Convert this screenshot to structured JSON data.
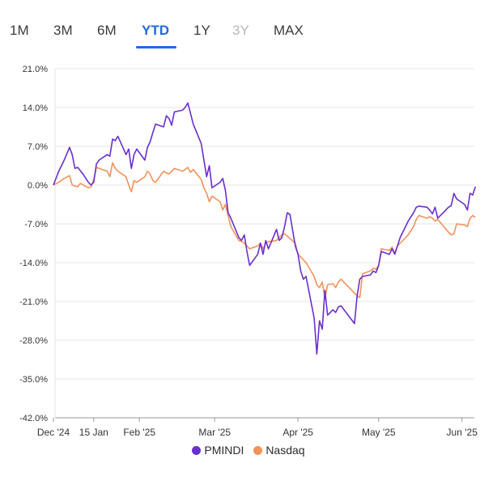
{
  "tabs": [
    {
      "label": "1M",
      "state": "normal"
    },
    {
      "label": "3M",
      "state": "normal"
    },
    {
      "label": "6M",
      "state": "normal"
    },
    {
      "label": "YTD",
      "state": "active"
    },
    {
      "label": "1Y",
      "state": "normal"
    },
    {
      "label": "3Y",
      "state": "disabled"
    },
    {
      "label": "MAX",
      "state": "normal"
    }
  ],
  "colors": {
    "accent": "#1e6be0",
    "pmindi": "#6a2fd0",
    "nasdaq": "#f4925a"
  },
  "chart_data": {
    "type": "line",
    "grid": "horizontal",
    "legend_position": "bottom-center",
    "ylim": [
      -42,
      21
    ],
    "y_ticks": [
      "21.0%",
      "14.0%",
      "7.0%",
      "0.0%",
      "-7.0%",
      "-14.0%",
      "-21.0%",
      "-28.0%",
      "-35.0%",
      "-42.0%"
    ],
    "y_tick_values": [
      21,
      14,
      7,
      0,
      -7,
      -14,
      -21,
      -28,
      -35,
      -42
    ],
    "x_range": [
      "2024-12-31",
      "2025-06-05"
    ],
    "x_ticks": [
      {
        "label": "Dec '24",
        "date": "2024-12-31"
      },
      {
        "label": "15 Jan",
        "date": "2025-01-15"
      },
      {
        "label": "Feb '25",
        "date": "2025-02-01"
      },
      {
        "label": "Mar '25",
        "date": "2025-03-01"
      },
      {
        "label": "Apr '25",
        "date": "2025-04-01"
      },
      {
        "label": "May '25",
        "date": "2025-05-01"
      },
      {
        "label": "Jun '25",
        "date": "2025-06-01"
      }
    ],
    "series": [
      {
        "name": "PMINDI",
        "points": [
          [
            "2024-12-31",
            0.0
          ],
          [
            "2025-01-02",
            2.5
          ],
          [
            "2025-01-04",
            4.5
          ],
          [
            "2025-01-06",
            6.8
          ],
          [
            "2025-01-07",
            5.5
          ],
          [
            "2025-01-08",
            3.0
          ],
          [
            "2025-01-09",
            3.2
          ],
          [
            "2025-01-11",
            2.0
          ],
          [
            "2025-01-13",
            0.5
          ],
          [
            "2025-01-14",
            0.0
          ],
          [
            "2025-01-15",
            0.5
          ],
          [
            "2025-01-16",
            3.8
          ],
          [
            "2025-01-17",
            4.5
          ],
          [
            "2025-01-20",
            5.5
          ],
          [
            "2025-01-21",
            5.2
          ],
          [
            "2025-01-22",
            8.3
          ],
          [
            "2025-01-23",
            8.0
          ],
          [
            "2025-01-24",
            8.8
          ],
          [
            "2025-01-27",
            5.5
          ],
          [
            "2025-01-28",
            6.5
          ],
          [
            "2025-01-29",
            3.0
          ],
          [
            "2025-01-30",
            5.5
          ],
          [
            "2025-01-31",
            6.5
          ],
          [
            "2025-02-03",
            4.5
          ],
          [
            "2025-02-04",
            6.8
          ],
          [
            "2025-02-05",
            7.8
          ],
          [
            "2025-02-06",
            9.5
          ],
          [
            "2025-02-07",
            11.0
          ],
          [
            "2025-02-10",
            10.5
          ],
          [
            "2025-02-11",
            12.5
          ],
          [
            "2025-02-12",
            12.0
          ],
          [
            "2025-02-13",
            10.8
          ],
          [
            "2025-02-14",
            13.2
          ],
          [
            "2025-02-17",
            13.5
          ],
          [
            "2025-02-18",
            14.0
          ],
          [
            "2025-02-19",
            14.8
          ],
          [
            "2025-02-20",
            13.0
          ],
          [
            "2025-02-21",
            11.0
          ],
          [
            "2025-02-24",
            7.5
          ],
          [
            "2025-02-25",
            4.5
          ],
          [
            "2025-02-26",
            1.5
          ],
          [
            "2025-02-27",
            3.5
          ],
          [
            "2025-02-28",
            -0.5
          ],
          [
            "2025-03-03",
            0.5
          ],
          [
            "2025-03-04",
            1.2
          ],
          [
            "2025-03-05",
            -1.0
          ],
          [
            "2025-03-06",
            -5.0
          ],
          [
            "2025-03-07",
            -6.0
          ],
          [
            "2025-03-10",
            -9.5
          ],
          [
            "2025-03-11",
            -10.0
          ],
          [
            "2025-03-12",
            -9.0
          ],
          [
            "2025-03-13",
            -12.0
          ],
          [
            "2025-03-14",
            -14.5
          ],
          [
            "2025-03-17",
            -12.5
          ],
          [
            "2025-03-18",
            -10.5
          ],
          [
            "2025-03-19",
            -12.5
          ],
          [
            "2025-03-20",
            -10.0
          ],
          [
            "2025-03-21",
            -11.5
          ],
          [
            "2025-03-24",
            -8.0
          ],
          [
            "2025-03-25",
            -10.0
          ],
          [
            "2025-03-26",
            -9.5
          ],
          [
            "2025-03-27",
            -7.5
          ],
          [
            "2025-03-28",
            -5.0
          ],
          [
            "2025-03-29",
            -5.3
          ],
          [
            "2025-03-31",
            -11.0
          ],
          [
            "2025-04-01",
            -12.5
          ],
          [
            "2025-04-02",
            -15.5
          ],
          [
            "2025-04-03",
            -17.0
          ],
          [
            "2025-04-04",
            -16.5
          ],
          [
            "2025-04-07",
            -24.0
          ],
          [
            "2025-04-08",
            -30.5
          ],
          [
            "2025-04-09",
            -24.5
          ],
          [
            "2025-04-10",
            -26.0
          ],
          [
            "2025-04-11",
            -19.0
          ],
          [
            "2025-04-12",
            -23.5
          ],
          [
            "2025-04-14",
            -22.5
          ],
          [
            "2025-04-15",
            -23.0
          ],
          [
            "2025-04-16",
            -22.0
          ],
          [
            "2025-04-17",
            -21.8
          ],
          [
            "2025-04-22",
            -25.0
          ],
          [
            "2025-04-23",
            -20.0
          ],
          [
            "2025-04-24",
            -17.0
          ],
          [
            "2025-04-25",
            -16.5
          ],
          [
            "2025-04-28",
            -16.2
          ],
          [
            "2025-04-29",
            -15.5
          ],
          [
            "2025-04-30",
            -15.8
          ],
          [
            "2025-05-01",
            -14.5
          ],
          [
            "2025-05-02",
            -12.0
          ],
          [
            "2025-05-05",
            -12.5
          ],
          [
            "2025-05-06",
            -11.5
          ],
          [
            "2025-05-07",
            -12.5
          ],
          [
            "2025-05-08",
            -11.0
          ],
          [
            "2025-05-09",
            -9.5
          ],
          [
            "2025-05-12",
            -6.5
          ],
          [
            "2025-05-14",
            -5.0
          ],
          [
            "2025-05-15",
            -4.0
          ],
          [
            "2025-05-16",
            -3.8
          ],
          [
            "2025-05-19",
            -4.0
          ],
          [
            "2025-05-20",
            -4.5
          ],
          [
            "2025-05-21",
            -5.2
          ],
          [
            "2025-05-22",
            -4.0
          ],
          [
            "2025-05-23",
            -6.0
          ],
          [
            "2025-05-27",
            -4.0
          ],
          [
            "2025-05-28",
            -3.7
          ],
          [
            "2025-05-29",
            -1.5
          ],
          [
            "2025-05-30",
            -2.5
          ],
          [
            "2025-06-02",
            -3.5
          ],
          [
            "2025-06-03",
            -4.5
          ],
          [
            "2025-06-04",
            -1.5
          ],
          [
            "2025-06-05",
            -1.8
          ],
          [
            "2025-06-06",
            -0.3
          ]
        ]
      },
      {
        "name": "Nasdaq",
        "points": [
          [
            "2024-12-31",
            0.0
          ],
          [
            "2025-01-02",
            0.5
          ],
          [
            "2025-01-04",
            1.2
          ],
          [
            "2025-01-06",
            1.7
          ],
          [
            "2025-01-07",
            0.0
          ],
          [
            "2025-01-09",
            -0.3
          ],
          [
            "2025-01-10",
            0.3
          ],
          [
            "2025-01-13",
            -0.5
          ],
          [
            "2025-01-14",
            -0.3
          ],
          [
            "2025-01-15",
            1.0
          ],
          [
            "2025-01-16",
            3.2
          ],
          [
            "2025-01-17",
            3.0
          ],
          [
            "2025-01-20",
            2.5
          ],
          [
            "2025-01-21",
            1.5
          ],
          [
            "2025-01-22",
            4.0
          ],
          [
            "2025-01-23",
            3.0
          ],
          [
            "2025-01-24",
            2.5
          ],
          [
            "2025-01-27",
            1.5
          ],
          [
            "2025-01-28",
            0.0
          ],
          [
            "2025-01-29",
            -1.2
          ],
          [
            "2025-01-30",
            0.8
          ],
          [
            "2025-01-31",
            0.5
          ],
          [
            "2025-02-03",
            1.5
          ],
          [
            "2025-02-04",
            2.5
          ],
          [
            "2025-02-05",
            2.0
          ],
          [
            "2025-02-06",
            0.8
          ],
          [
            "2025-02-07",
            0.5
          ],
          [
            "2025-02-10",
            2.5
          ],
          [
            "2025-02-11",
            2.2
          ],
          [
            "2025-02-12",
            2.0
          ],
          [
            "2025-02-13",
            2.5
          ],
          [
            "2025-02-14",
            3.0
          ],
          [
            "2025-02-17",
            2.5
          ],
          [
            "2025-02-18",
            2.8
          ],
          [
            "2025-02-19",
            3.2
          ],
          [
            "2025-02-20",
            2.3
          ],
          [
            "2025-02-21",
            2.8
          ],
          [
            "2025-02-24",
            1.0
          ],
          [
            "2025-02-25",
            -0.5
          ],
          [
            "2025-02-26",
            -1.5
          ],
          [
            "2025-02-27",
            -3.0
          ],
          [
            "2025-02-28",
            -2.0
          ],
          [
            "2025-03-03",
            -3.0
          ],
          [
            "2025-03-04",
            -4.5
          ],
          [
            "2025-03-05",
            -3.5
          ],
          [
            "2025-03-06",
            -5.5
          ],
          [
            "2025-03-07",
            -7.5
          ],
          [
            "2025-03-10",
            -10.0
          ],
          [
            "2025-03-11",
            -10.2
          ],
          [
            "2025-03-12",
            -10.5
          ],
          [
            "2025-03-13",
            -11.0
          ],
          [
            "2025-03-14",
            -11.5
          ],
          [
            "2025-03-17",
            -11.0
          ],
          [
            "2025-03-18",
            -10.5
          ],
          [
            "2025-03-19",
            -11.5
          ],
          [
            "2025-03-20",
            -10.5
          ],
          [
            "2025-03-21",
            -10.2
          ],
          [
            "2025-03-24",
            -10.0
          ],
          [
            "2025-03-25",
            -9.5
          ],
          [
            "2025-03-26",
            -9.0
          ],
          [
            "2025-03-27",
            -8.8
          ],
          [
            "2025-03-28",
            -9.2
          ],
          [
            "2025-03-31",
            -10.5
          ],
          [
            "2025-04-01",
            -12.5
          ],
          [
            "2025-04-02",
            -13.0
          ],
          [
            "2025-04-03",
            -13.5
          ],
          [
            "2025-04-04",
            -14.0
          ],
          [
            "2025-04-07",
            -16.5
          ],
          [
            "2025-04-08",
            -18.0
          ],
          [
            "2025-04-09",
            -18.5
          ],
          [
            "2025-04-10",
            -17.5
          ],
          [
            "2025-04-11",
            -20.5
          ],
          [
            "2025-04-12",
            -18.0
          ],
          [
            "2025-04-14",
            -17.8
          ],
          [
            "2025-04-15",
            -18.5
          ],
          [
            "2025-04-16",
            -17.5
          ],
          [
            "2025-04-17",
            -17.0
          ],
          [
            "2025-04-21",
            -19.0
          ],
          [
            "2025-04-22",
            -19.5
          ],
          [
            "2025-04-23",
            -20.0
          ],
          [
            "2025-04-24",
            -20.3
          ],
          [
            "2025-04-25",
            -16.0
          ],
          [
            "2025-04-28",
            -15.5
          ],
          [
            "2025-04-29",
            -15.0
          ],
          [
            "2025-04-30",
            -15.2
          ],
          [
            "2025-05-01",
            -14.5
          ],
          [
            "2025-05-02",
            -11.5
          ],
          [
            "2025-05-05",
            -11.8
          ],
          [
            "2025-05-06",
            -11.2
          ],
          [
            "2025-05-07",
            -12.3
          ],
          [
            "2025-05-08",
            -11.0
          ],
          [
            "2025-05-09",
            -10.5
          ],
          [
            "2025-05-12",
            -9.0
          ],
          [
            "2025-05-14",
            -7.5
          ],
          [
            "2025-05-15",
            -6.2
          ],
          [
            "2025-05-16",
            -5.5
          ],
          [
            "2025-05-19",
            -6.0
          ],
          [
            "2025-05-20",
            -5.7
          ],
          [
            "2025-05-21",
            -6.0
          ],
          [
            "2025-05-22",
            -6.5
          ],
          [
            "2025-05-23",
            -6.2
          ],
          [
            "2025-05-27",
            -8.5
          ],
          [
            "2025-05-28",
            -9.0
          ],
          [
            "2025-05-29",
            -8.8
          ],
          [
            "2025-05-30",
            -7.0
          ],
          [
            "2025-06-02",
            -7.2
          ],
          [
            "2025-06-03",
            -7.5
          ],
          [
            "2025-06-04",
            -6.0
          ],
          [
            "2025-06-05",
            -5.5
          ],
          [
            "2025-06-06",
            -5.8
          ]
        ]
      }
    ]
  }
}
